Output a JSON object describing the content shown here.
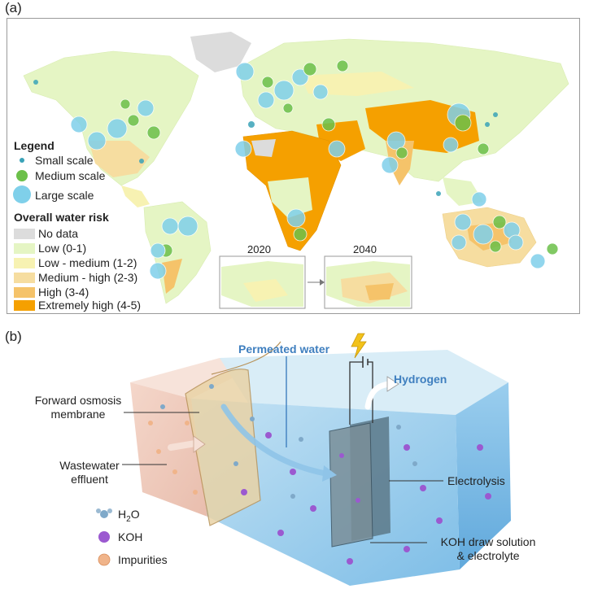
{
  "panel_a": {
    "label": "(a)",
    "legend_title": "Legend",
    "scales": [
      {
        "label": "Small scale",
        "color": "#3aa3b8"
      },
      {
        "label": "Medium scale",
        "color": "#6cc04a"
      },
      {
        "label": "Large scale",
        "color": "#7fd0ea"
      }
    ],
    "risk_title": "Overall water risk",
    "risk_levels": [
      {
        "label": "No data",
        "color": "#dcdcdc"
      },
      {
        "label": "Low (0-1)",
        "color": "#e5f5c4"
      },
      {
        "label": "Low - medium (1-2)",
        "color": "#f7f2b2"
      },
      {
        "label": "Medium - high (2-3)",
        "color": "#f6dda0"
      },
      {
        "label": "High (3-4)",
        "color": "#f5c36a"
      },
      {
        "label": "Extremely high (4-5)",
        "color": "#f5a000"
      }
    ],
    "inset_years": [
      "2020",
      "2040"
    ]
  },
  "panel_b": {
    "label": "(b)",
    "callouts": {
      "permeated_water": "Permeated water",
      "hydrogen": "Hydrogen",
      "fo_membrane_line1": "Forward osmosis",
      "fo_membrane_line2": "membrane",
      "wastewater_line1": "Wastewater",
      "wastewater_line2": "effluent",
      "electrolysis": "Electrolysis",
      "draw_line1": "KOH draw solution",
      "draw_line2": "& electrolyte"
    },
    "key": {
      "h2o_main": "H",
      "h2o_sub": "2",
      "h2o_tail": "O",
      "koh": "KOH",
      "impurities": "Impurities"
    }
  }
}
